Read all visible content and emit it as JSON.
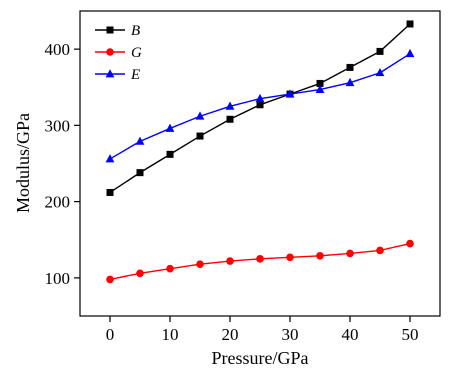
{
  "chart_data": {
    "type": "line",
    "xlabel": "Pressure/GPa",
    "ylabel": "Modulus/GPa",
    "xlim": [
      -5,
      55
    ],
    "ylim": [
      50,
      450
    ],
    "xticks": [
      0,
      10,
      20,
      30,
      40,
      50
    ],
    "yticks": [
      100,
      200,
      300,
      400
    ],
    "grid": false,
    "legend": "top-left",
    "x": [
      0,
      5,
      10,
      15,
      20,
      25,
      30,
      35,
      40,
      45,
      50
    ],
    "series": [
      {
        "name": "B",
        "color": "#000000",
        "marker": "square",
        "values": [
          212,
          238,
          262,
          286,
          308,
          327,
          341,
          355,
          376,
          397,
          433
        ]
      },
      {
        "name": "G",
        "color": "#ff0000",
        "marker": "circle",
        "values": [
          98,
          106,
          112,
          118,
          122,
          125,
          127,
          129,
          132,
          136,
          145
        ]
      },
      {
        "name": "E",
        "color": "#0000ff",
        "marker": "triangle",
        "values": [
          256,
          279,
          296,
          312,
          325,
          335,
          341,
          347,
          356,
          369,
          394
        ]
      }
    ]
  }
}
